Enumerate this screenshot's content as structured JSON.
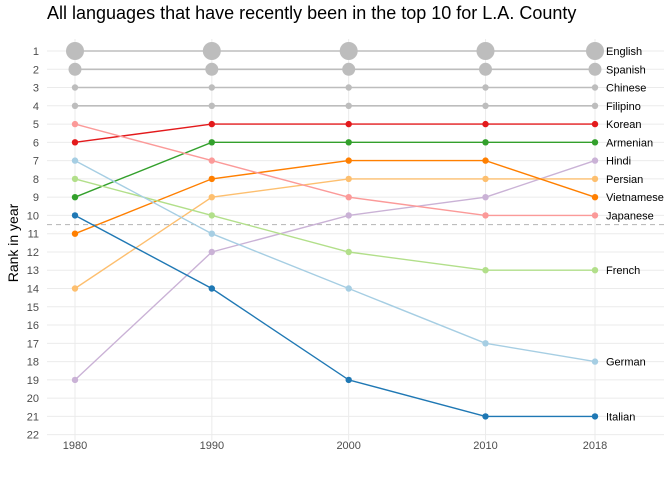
{
  "chart_data": {
    "type": "line",
    "title": "All languages that have recently been in the top 10 for L.A. County",
    "xlabel": "",
    "ylabel": "Rank in year",
    "x": [
      1980,
      1990,
      2000,
      2010,
      2018
    ],
    "xticks": [
      "1980",
      "1990",
      "2000",
      "2010",
      "2018"
    ],
    "ylim": [
      22,
      1
    ],
    "yticks": [
      1,
      2,
      3,
      4,
      5,
      6,
      7,
      8,
      9,
      10,
      11,
      12,
      13,
      14,
      15,
      16,
      17,
      18,
      19,
      20,
      21,
      22
    ],
    "y_reversed": true,
    "grid": true,
    "reference_line": {
      "y": 10.5,
      "style": "dashed",
      "color": "#bdbdbd"
    },
    "legend": "direct labels at right end of each line",
    "series": [
      {
        "name": "English",
        "color": "#bdbdbd",
        "values": [
          1,
          1,
          1,
          1,
          1
        ],
        "marker_scale": "large"
      },
      {
        "name": "Spanish",
        "color": "#bdbdbd",
        "values": [
          2,
          2,
          2,
          2,
          2
        ],
        "marker_scale": "medium"
      },
      {
        "name": "Chinese",
        "color": "#bdbdbd",
        "values": [
          3,
          3,
          3,
          3,
          3
        ],
        "marker_scale": "small"
      },
      {
        "name": "Filipino",
        "color": "#bdbdbd",
        "values": [
          4,
          4,
          4,
          4,
          4
        ],
        "marker_scale": "small"
      },
      {
        "name": "Korean",
        "color": "#e31a1c",
        "values": [
          6,
          5,
          5,
          5,
          5
        ],
        "marker_scale": "small"
      },
      {
        "name": "Armenian",
        "color": "#33a02c",
        "values": [
          9,
          6,
          6,
          6,
          6
        ],
        "marker_scale": "small"
      },
      {
        "name": "Hindi",
        "color": "#cab2d6",
        "values": [
          19,
          12,
          10,
          9,
          7
        ],
        "marker_scale": "small"
      },
      {
        "name": "Persian",
        "color": "#fdbf6f",
        "values": [
          14,
          9,
          8,
          8,
          8
        ],
        "marker_scale": "small"
      },
      {
        "name": "Vietnamese",
        "color": "#ff7f00",
        "values": [
          11,
          8,
          7,
          7,
          9
        ],
        "marker_scale": "small"
      },
      {
        "name": "Japanese",
        "color": "#fb9a99",
        "values": [
          5,
          7,
          9,
          10,
          10
        ],
        "marker_scale": "small"
      },
      {
        "name": "French",
        "color": "#b2df8a",
        "values": [
          8,
          10,
          12,
          13,
          13
        ],
        "marker_scale": "small"
      },
      {
        "name": "German",
        "color": "#a6cee3",
        "values": [
          7,
          11,
          14,
          17,
          18
        ],
        "marker_scale": "small"
      },
      {
        "name": "Italian",
        "color": "#1f78b4",
        "values": [
          10,
          14,
          19,
          21,
          21
        ],
        "marker_scale": "small"
      }
    ]
  }
}
